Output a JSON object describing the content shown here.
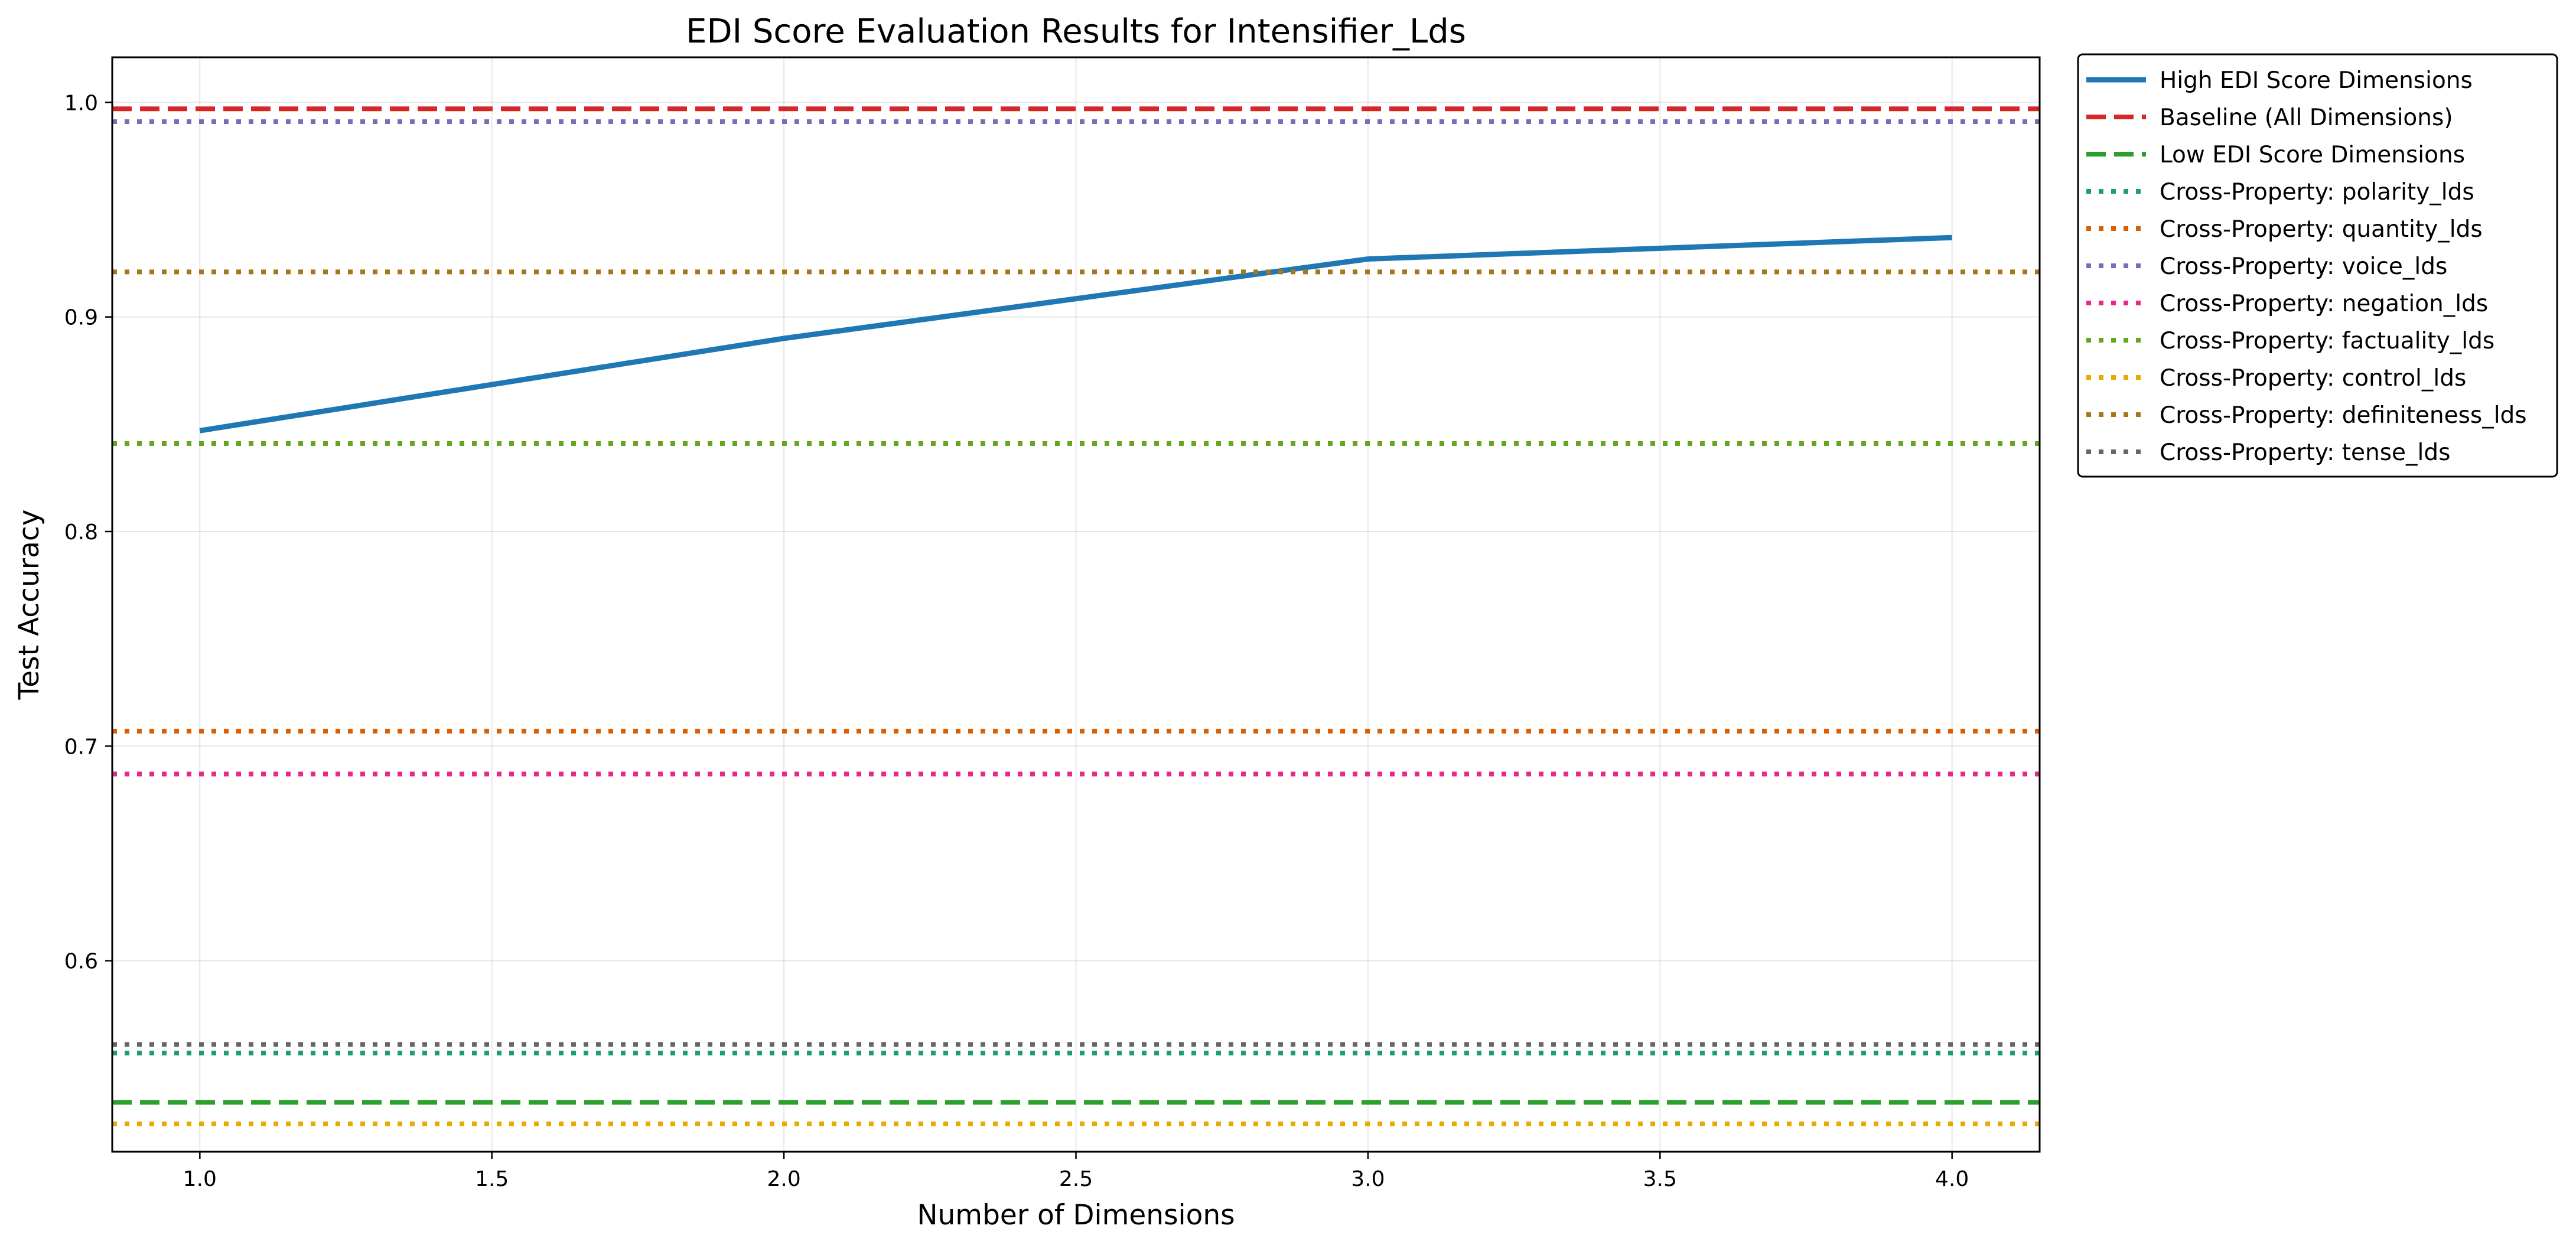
{
  "chart_data": {
    "type": "line",
    "title": "EDI Score Evaluation Results for Intensifier_Lds",
    "xlabel": "Number of Dimensions",
    "ylabel": "Test Accuracy",
    "xlim": [
      0.85,
      4.15
    ],
    "ylim": [
      0.511,
      1.021
    ],
    "xticks": [
      1.0,
      1.5,
      2.0,
      2.5,
      3.0,
      3.5,
      4.0
    ],
    "xtick_labels": [
      "1.0",
      "1.5",
      "2.0",
      "2.5",
      "3.0",
      "3.5",
      "4.0"
    ],
    "yticks": [
      0.6,
      0.7,
      0.8,
      0.9,
      1.0
    ],
    "ytick_labels": [
      "0.6",
      "0.7",
      "0.8",
      "0.9",
      "1.0"
    ],
    "grid": true,
    "legend_position": "outside-right-top",
    "series": [
      {
        "name": "High EDI Score Dimensions",
        "kind": "line",
        "style": "solid",
        "color": "#1f77b4",
        "x": [
          1,
          2,
          3,
          4
        ],
        "y": [
          0.847,
          0.89,
          0.927,
          0.937
        ]
      },
      {
        "name": "Baseline (All Dimensions)",
        "kind": "hline",
        "style": "dashed",
        "color": "#d62728",
        "y": 0.997
      },
      {
        "name": "Low EDI Score Dimensions",
        "kind": "hline",
        "style": "dashed",
        "color": "#2ca02c",
        "y": 0.534
      },
      {
        "name": "Cross-Property: polarity_lds",
        "kind": "hline",
        "style": "dotted",
        "color": "#1b9e77",
        "y": 0.557
      },
      {
        "name": "Cross-Property: quantity_lds",
        "kind": "hline",
        "style": "dotted",
        "color": "#d95f02",
        "y": 0.707
      },
      {
        "name": "Cross-Property: voice_lds",
        "kind": "hline",
        "style": "dotted",
        "color": "#7570b3",
        "y": 0.991
      },
      {
        "name": "Cross-Property: negation_lds",
        "kind": "hline",
        "style": "dotted",
        "color": "#e7298a",
        "y": 0.687
      },
      {
        "name": "Cross-Property: factuality_lds",
        "kind": "hline",
        "style": "dotted",
        "color": "#66a61e",
        "y": 0.841
      },
      {
        "name": "Cross-Property: control_lds",
        "kind": "hline",
        "style": "dotted",
        "color": "#e6ab02",
        "y": 0.524
      },
      {
        "name": "Cross-Property: definiteness_lds",
        "kind": "hline",
        "style": "dotted",
        "color": "#a6761d",
        "y": 0.921
      },
      {
        "name": "Cross-Property: tense_lds",
        "kind": "hline",
        "style": "dotted",
        "color": "#666666",
        "y": 0.561
      }
    ]
  }
}
